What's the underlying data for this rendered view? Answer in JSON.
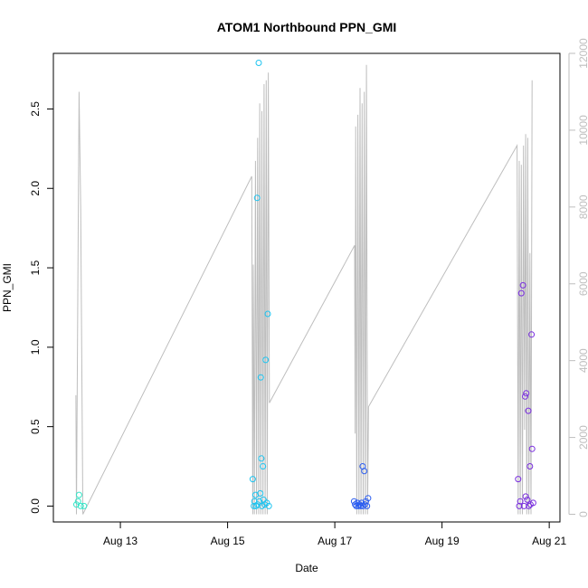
{
  "chart_data": {
    "type": "scatter",
    "title": "ATOM1 Northbound PPN_GMI",
    "xlabel": "Date",
    "ylabel": "PPN_GMI",
    "x_ticks": [
      "Aug 13",
      "Aug 15",
      "Aug 17",
      "Aug 19",
      "Aug 21"
    ],
    "x_tick_values": [
      13,
      15,
      17,
      19,
      21
    ],
    "xlim": [
      11.75,
      21.2
    ],
    "ylim": [
      -0.1,
      2.85
    ],
    "y_ticks": [
      "0.0",
      "0.5",
      "1.0",
      "1.5",
      "2.0",
      "2.5"
    ],
    "y_tick_values": [
      0.0,
      0.5,
      1.0,
      1.5,
      2.0,
      2.5
    ],
    "y2lim": [
      -200,
      12000
    ],
    "y2_ticks": [
      "0",
      "2000",
      "4000",
      "6000",
      "8000",
      "10000",
      "12000"
    ],
    "y2_tick_values": [
      0,
      2000,
      4000,
      6000,
      8000,
      10000,
      12000
    ],
    "grid": false,
    "colors": {
      "frame": "#000000",
      "secondary_line": "#bebebe",
      "secondary_axis": "#bebebe"
    },
    "series": [
      {
        "role": "points",
        "axis": "left",
        "points": [
          {
            "x": 12.18,
            "y": 0.01,
            "color": "#33e6c8"
          },
          {
            "x": 12.21,
            "y": 0.03,
            "color": "#33e6c8"
          },
          {
            "x": 12.23,
            "y": 0.07,
            "color": "#33e6c8"
          },
          {
            "x": 12.26,
            "y": 0.0,
            "color": "#33e6c8"
          },
          {
            "x": 12.32,
            "y": 0.0,
            "color": "#33e6c8"
          },
          {
            "x": 15.47,
            "y": 0.17,
            "color": "#1ec4f0"
          },
          {
            "x": 15.49,
            "y": 0.0,
            "color": "#1ec4f0"
          },
          {
            "x": 15.5,
            "y": 0.03,
            "color": "#1ec4f0"
          },
          {
            "x": 15.52,
            "y": 0.07,
            "color": "#1ec4f0"
          },
          {
            "x": 15.53,
            "y": 0.0,
            "color": "#1ec4f0"
          },
          {
            "x": 15.55,
            "y": 1.94,
            "color": "#1ec4f0"
          },
          {
            "x": 15.56,
            "y": 0.01,
            "color": "#1ec4f0"
          },
          {
            "x": 15.58,
            "y": 2.79,
            "color": "#1ec4f0"
          },
          {
            "x": 15.59,
            "y": 0.03,
            "color": "#1ec4f0"
          },
          {
            "x": 15.61,
            "y": 0.08,
            "color": "#1ec4f0"
          },
          {
            "x": 15.62,
            "y": 0.81,
            "color": "#1ec4f0"
          },
          {
            "x": 15.63,
            "y": 0.3,
            "color": "#1ec4f0"
          },
          {
            "x": 15.64,
            "y": 0.0,
            "color": "#1ec4f0"
          },
          {
            "x": 15.66,
            "y": 0.25,
            "color": "#1ec4f0"
          },
          {
            "x": 15.67,
            "y": 0.04,
            "color": "#1ec4f0"
          },
          {
            "x": 15.69,
            "y": 0.01,
            "color": "#1ec4f0"
          },
          {
            "x": 15.71,
            "y": 0.92,
            "color": "#1ec4f0"
          },
          {
            "x": 15.73,
            "y": 0.02,
            "color": "#1ec4f0"
          },
          {
            "x": 15.75,
            "y": 1.21,
            "color": "#1ec4f0"
          },
          {
            "x": 15.77,
            "y": 0.0,
            "color": "#1ec4f0"
          },
          {
            "x": 17.36,
            "y": 0.03,
            "color": "#2a5cf0"
          },
          {
            "x": 17.38,
            "y": 0.01,
            "color": "#2a5cf0"
          },
          {
            "x": 17.4,
            "y": 0.0,
            "color": "#2a5cf0"
          },
          {
            "x": 17.42,
            "y": 0.02,
            "color": "#2a5cf0"
          },
          {
            "x": 17.44,
            "y": 0.0,
            "color": "#2a5cf0"
          },
          {
            "x": 17.46,
            "y": 0.01,
            "color": "#2a5cf0"
          },
          {
            "x": 17.48,
            "y": 0.0,
            "color": "#2a5cf0"
          },
          {
            "x": 17.5,
            "y": 0.02,
            "color": "#2a5cf0"
          },
          {
            "x": 17.52,
            "y": 0.25,
            "color": "#2a5cf0"
          },
          {
            "x": 17.53,
            "y": 0.0,
            "color": "#2a5cf0"
          },
          {
            "x": 17.55,
            "y": 0.22,
            "color": "#2a5cf0"
          },
          {
            "x": 17.56,
            "y": 0.01,
            "color": "#2a5cf0"
          },
          {
            "x": 17.58,
            "y": 0.03,
            "color": "#2a5cf0"
          },
          {
            "x": 17.6,
            "y": 0.0,
            "color": "#2a5cf0"
          },
          {
            "x": 17.62,
            "y": 0.05,
            "color": "#2a5cf0"
          },
          {
            "x": 20.42,
            "y": 0.17,
            "color": "#7a2ee0"
          },
          {
            "x": 20.44,
            "y": 0.0,
            "color": "#7a2ee0"
          },
          {
            "x": 20.46,
            "y": 0.03,
            "color": "#7a2ee0"
          },
          {
            "x": 20.48,
            "y": 1.34,
            "color": "#7a2ee0"
          },
          {
            "x": 20.51,
            "y": 1.39,
            "color": "#7a2ee0"
          },
          {
            "x": 20.53,
            "y": 0.0,
            "color": "#7a2ee0"
          },
          {
            "x": 20.55,
            "y": 0.69,
            "color": "#7a2ee0"
          },
          {
            "x": 20.56,
            "y": 0.06,
            "color": "#7a2ee0"
          },
          {
            "x": 20.57,
            "y": 0.71,
            "color": "#7a2ee0"
          },
          {
            "x": 20.59,
            "y": 0.04,
            "color": "#7a2ee0"
          },
          {
            "x": 20.61,
            "y": 0.6,
            "color": "#7a2ee0"
          },
          {
            "x": 20.62,
            "y": 0.0,
            "color": "#7a2ee0"
          },
          {
            "x": 20.64,
            "y": 0.25,
            "color": "#7a2ee0"
          },
          {
            "x": 20.65,
            "y": 0.01,
            "color": "#7a2ee0"
          },
          {
            "x": 20.67,
            "y": 1.08,
            "color": "#7a2ee0"
          },
          {
            "x": 20.68,
            "y": 0.36,
            "color": "#7a2ee0"
          },
          {
            "x": 20.7,
            "y": 0.02,
            "color": "#7a2ee0"
          }
        ]
      },
      {
        "role": "line",
        "axis": "right",
        "points": [
          [
            12.17,
            3100
          ],
          [
            12.18,
            0
          ],
          [
            12.23,
            11000
          ],
          [
            12.26,
            8000
          ],
          [
            12.3,
            0
          ],
          [
            15.45,
            8800
          ],
          [
            15.47,
            0
          ],
          [
            15.48,
            6500
          ],
          [
            15.5,
            0
          ],
          [
            15.52,
            9200
          ],
          [
            15.54,
            0
          ],
          [
            15.56,
            9800
          ],
          [
            15.58,
            0
          ],
          [
            15.6,
            10700
          ],
          [
            15.62,
            0
          ],
          [
            15.64,
            10500
          ],
          [
            15.66,
            0
          ],
          [
            15.68,
            11200
          ],
          [
            15.7,
            0
          ],
          [
            15.72,
            11300
          ],
          [
            15.74,
            0
          ],
          [
            15.76,
            11500
          ],
          [
            15.78,
            2900
          ],
          [
            17.37,
            7000
          ],
          [
            17.38,
            2100
          ],
          [
            17.39,
            10100
          ],
          [
            17.41,
            0
          ],
          [
            17.43,
            10400
          ],
          [
            17.45,
            0
          ],
          [
            17.47,
            11100
          ],
          [
            17.49,
            0
          ],
          [
            17.51,
            10700
          ],
          [
            17.53,
            0
          ],
          [
            17.55,
            11000
          ],
          [
            17.57,
            0
          ],
          [
            17.59,
            11700
          ],
          [
            17.61,
            0
          ],
          [
            17.63,
            2800
          ],
          [
            20.4,
            9600
          ],
          [
            20.42,
            0
          ],
          [
            20.44,
            9200
          ],
          [
            20.46,
            0
          ],
          [
            20.48,
            9100
          ],
          [
            20.5,
            0
          ],
          [
            20.52,
            9600
          ],
          [
            20.54,
            2200
          ],
          [
            20.56,
            9900
          ],
          [
            20.58,
            0
          ],
          [
            20.6,
            9800
          ],
          [
            20.62,
            0
          ],
          [
            20.64,
            6800
          ],
          [
            20.66,
            0
          ],
          [
            20.68,
            11300
          ]
        ]
      }
    ]
  }
}
